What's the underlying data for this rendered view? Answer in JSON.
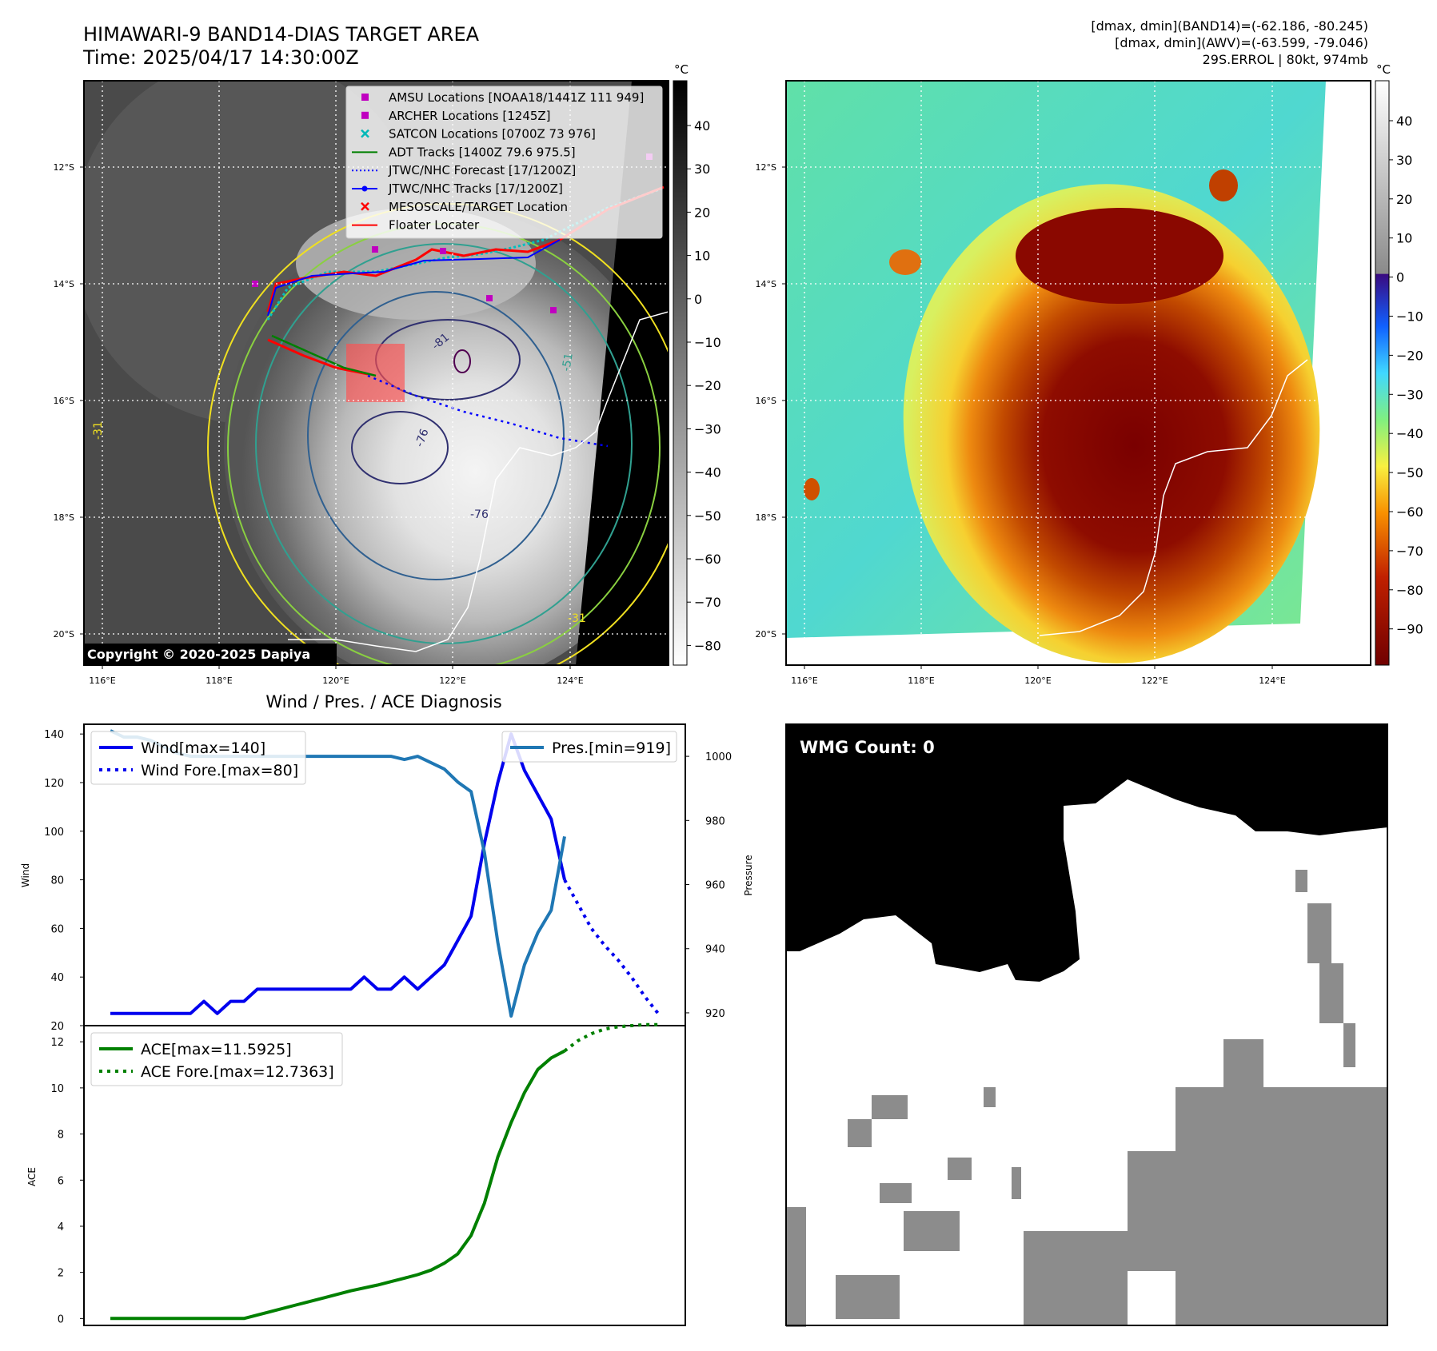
{
  "header": {
    "title_line1": "HIMAWARI-9 BAND14-DIAS TARGET AREA",
    "title_line2": "Time: 2025/04/17 14:30:00Z",
    "stats_line1": "[dmax, dmin](BAND14)=(-62.186, -80.245)",
    "stats_line2": "[dmax, dmin](AWV)=(-63.599, -79.046)",
    "stats_line3": "29S.ERROL | 80kt, 974mb"
  },
  "map_ir": {
    "copyright": "Copyright © 2020-2025 Dapiya",
    "lat_ticks": [
      "12°S",
      "14°S",
      "16°S",
      "18°S",
      "20°S"
    ],
    "lon_ticks": [
      "116°E",
      "118°E",
      "120°E",
      "122°E",
      "124°E"
    ],
    "colorbar_unit": "°C",
    "colorbar_ticks": [
      "40",
      "30",
      "20",
      "10",
      "0",
      "−10",
      "−20",
      "−30",
      "−40",
      "−50",
      "−60",
      "−70",
      "−80"
    ],
    "legend": [
      {
        "label": "AMSU Locations [NOAA18/1441Z 111 949]",
        "marker": "square",
        "color": "#c000c0"
      },
      {
        "label": "ARCHER Locations [1245Z]",
        "marker": "square",
        "color": "#c000c0"
      },
      {
        "label": "SATCON Locations [0700Z 73 976]",
        "marker": "x",
        "color": "#00b8b8"
      },
      {
        "label": "ADT Tracks [1400Z 79.6 975.5]",
        "marker": "line",
        "color": "#008000"
      },
      {
        "label": "JTWC/NHC Forecast [17/1200Z]",
        "marker": "dotted",
        "color": "#0000ff"
      },
      {
        "label": "JTWC/NHC Tracks [17/1200Z]",
        "marker": "line-dot",
        "color": "#0000ff"
      },
      {
        "label": "MESOSCALE/TARGET Location",
        "marker": "x",
        "color": "#ff0000"
      },
      {
        "label": "Floater Locater",
        "marker": "line",
        "color": "#ff0000"
      }
    ],
    "contour_labels": [
      "-81",
      "-76",
      "-76",
      "-51",
      "-31",
      "-31"
    ]
  },
  "map_color": {
    "lat_ticks": [
      "12°S",
      "14°S",
      "16°S",
      "18°S",
      "20°S"
    ],
    "lon_ticks": [
      "116°E",
      "118°E",
      "120°E",
      "122°E",
      "124°E"
    ],
    "colorbar_unit": "°C",
    "colorbar_ticks": [
      "40",
      "30",
      "20",
      "10",
      "0",
      "−10",
      "−20",
      "−30",
      "−40",
      "−50",
      "−60",
      "−70",
      "−80",
      "−90"
    ]
  },
  "chart_data": [
    {
      "type": "line",
      "title": "Wind / Pres. / ACE Diagnosis",
      "ylabel": "Wind",
      "ylabel_right": "Pressure",
      "ylim": [
        20,
        144
      ],
      "ylim_right": [
        916,
        1010
      ],
      "yticks": [
        20,
        40,
        60,
        80,
        100,
        120,
        140
      ],
      "yticks_right": [
        920,
        940,
        960,
        980,
        1000
      ],
      "legend_left": [
        "Wind[max=140]",
        "Wind Fore.[max=80]"
      ],
      "legend_right": [
        "Pres.[min=919]"
      ],
      "series": [
        {
          "name": "Wind[max=140]",
          "color": "#0000ee",
          "style": "solid",
          "axis": "left",
          "x": [
            0,
            1,
            2,
            3,
            4,
            5,
            6,
            7,
            8,
            9,
            10,
            11,
            12,
            13,
            14,
            15,
            16,
            17,
            18,
            19,
            20,
            21,
            22,
            23,
            24,
            25,
            26,
            27,
            28,
            29,
            30,
            31,
            32,
            33,
            34
          ],
          "values": [
            25,
            25,
            25,
            25,
            25,
            25,
            25,
            30,
            25,
            30,
            30,
            35,
            35,
            35,
            35,
            35,
            35,
            35,
            35,
            40,
            35,
            35,
            40,
            35,
            40,
            45,
            55,
            65,
            95,
            120,
            140,
            125,
            115,
            105,
            80
          ]
        },
        {
          "name": "Wind Fore.[max=80]",
          "color": "#0000ee",
          "style": "dotted",
          "axis": "left",
          "x": [
            34,
            35,
            36,
            37,
            38,
            39,
            40,
            41
          ],
          "values": [
            80,
            70,
            60,
            53,
            47,
            40,
            32,
            25
          ]
        },
        {
          "name": "Pres.[min=919]",
          "color": "#1f77b4",
          "style": "solid",
          "axis": "right",
          "x": [
            0,
            1,
            2,
            3,
            4,
            5,
            6,
            7,
            8,
            9,
            10,
            11,
            12,
            13,
            14,
            15,
            16,
            17,
            18,
            19,
            20,
            21,
            22,
            23,
            24,
            25,
            26,
            27,
            28,
            29,
            30,
            31,
            32,
            33,
            34
          ],
          "values": [
            1008,
            1006,
            1006,
            1005,
            1003,
            1001,
            1000,
            1000,
            1000,
            1000,
            1000,
            1000,
            1000,
            1000,
            1000,
            1000,
            1000,
            1000,
            1000,
            1000,
            1000,
            1000,
            999,
            1000,
            998,
            996,
            992,
            989,
            970,
            942,
            919,
            935,
            945,
            952,
            975
          ]
        }
      ]
    },
    {
      "type": "line",
      "ylabel": "ACE",
      "ylim": [
        -0.3,
        12.7
      ],
      "yticks": [
        0,
        2,
        4,
        6,
        8,
        10,
        12
      ],
      "legend": [
        "ACE[max=11.5925]",
        "ACE Fore.[max=12.7363]"
      ],
      "series": [
        {
          "name": "ACE[max=11.5925]",
          "color": "#008000",
          "style": "solid",
          "x": [
            0,
            2,
            4,
            6,
            8,
            10,
            12,
            14,
            16,
            18,
            20,
            21,
            22,
            23,
            24,
            25,
            26,
            27,
            28,
            29,
            30,
            31,
            32,
            33,
            34
          ],
          "values": [
            0,
            0,
            0,
            0,
            0,
            0,
            0.3,
            0.6,
            0.9,
            1.2,
            1.45,
            1.6,
            1.75,
            1.9,
            2.1,
            2.4,
            2.8,
            3.6,
            5.0,
            7.0,
            8.5,
            9.8,
            10.8,
            11.3,
            11.6
          ]
        },
        {
          "name": "ACE Fore.[max=12.7363]",
          "color": "#008000",
          "style": "dotted",
          "x": [
            34,
            35,
            36,
            37,
            38,
            39,
            40,
            41
          ],
          "values": [
            11.6,
            12.05,
            12.35,
            12.55,
            12.65,
            12.7,
            12.74,
            12.74
          ]
        }
      ]
    }
  ],
  "wmg_panel": {
    "label": "WMG Count: 0"
  }
}
